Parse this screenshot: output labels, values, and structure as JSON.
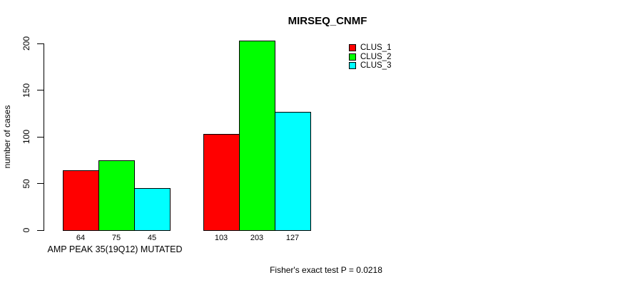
{
  "title": "MIRSEQ_CNMF",
  "y_axis": {
    "label": "number of cases",
    "ticks": [
      0,
      50,
      100,
      150,
      200
    ]
  },
  "x_axis": {
    "group_label": "AMP PEAK 35(19Q12) MUTATED"
  },
  "legend": {
    "items": [
      {
        "label": "CLUS_1",
        "color": "#FF0000"
      },
      {
        "label": "CLUS_2",
        "color": "#00FF00"
      },
      {
        "label": "CLUS_3",
        "color": "#00FFFF"
      }
    ]
  },
  "footer": {
    "annotation": "Fisher's exact test P = 0.0218"
  },
  "chart_data": {
    "type": "bar",
    "title": "MIRSEQ_CNMF",
    "xlabel": "AMP PEAK 35(19Q12) MUTATED",
    "ylabel": "number of cases",
    "ylim": [
      0,
      200
    ],
    "categories": [
      "AMP PEAK 35(19Q12) MUTATED",
      ""
    ],
    "series": [
      {
        "name": "CLUS_1",
        "color": "#FF0000",
        "values": [
          64,
          103
        ]
      },
      {
        "name": "CLUS_2",
        "color": "#00FF00",
        "values": [
          75,
          203
        ]
      },
      {
        "name": "CLUS_3",
        "color": "#00FFFF",
        "values": [
          45,
          127
        ]
      }
    ],
    "bar_value_labels": [
      [
        64,
        75,
        45
      ],
      [
        103,
        203,
        127
      ]
    ],
    "grid": false,
    "legend_position": "top-right",
    "annotation": "Fisher's exact test P = 0.0218"
  }
}
